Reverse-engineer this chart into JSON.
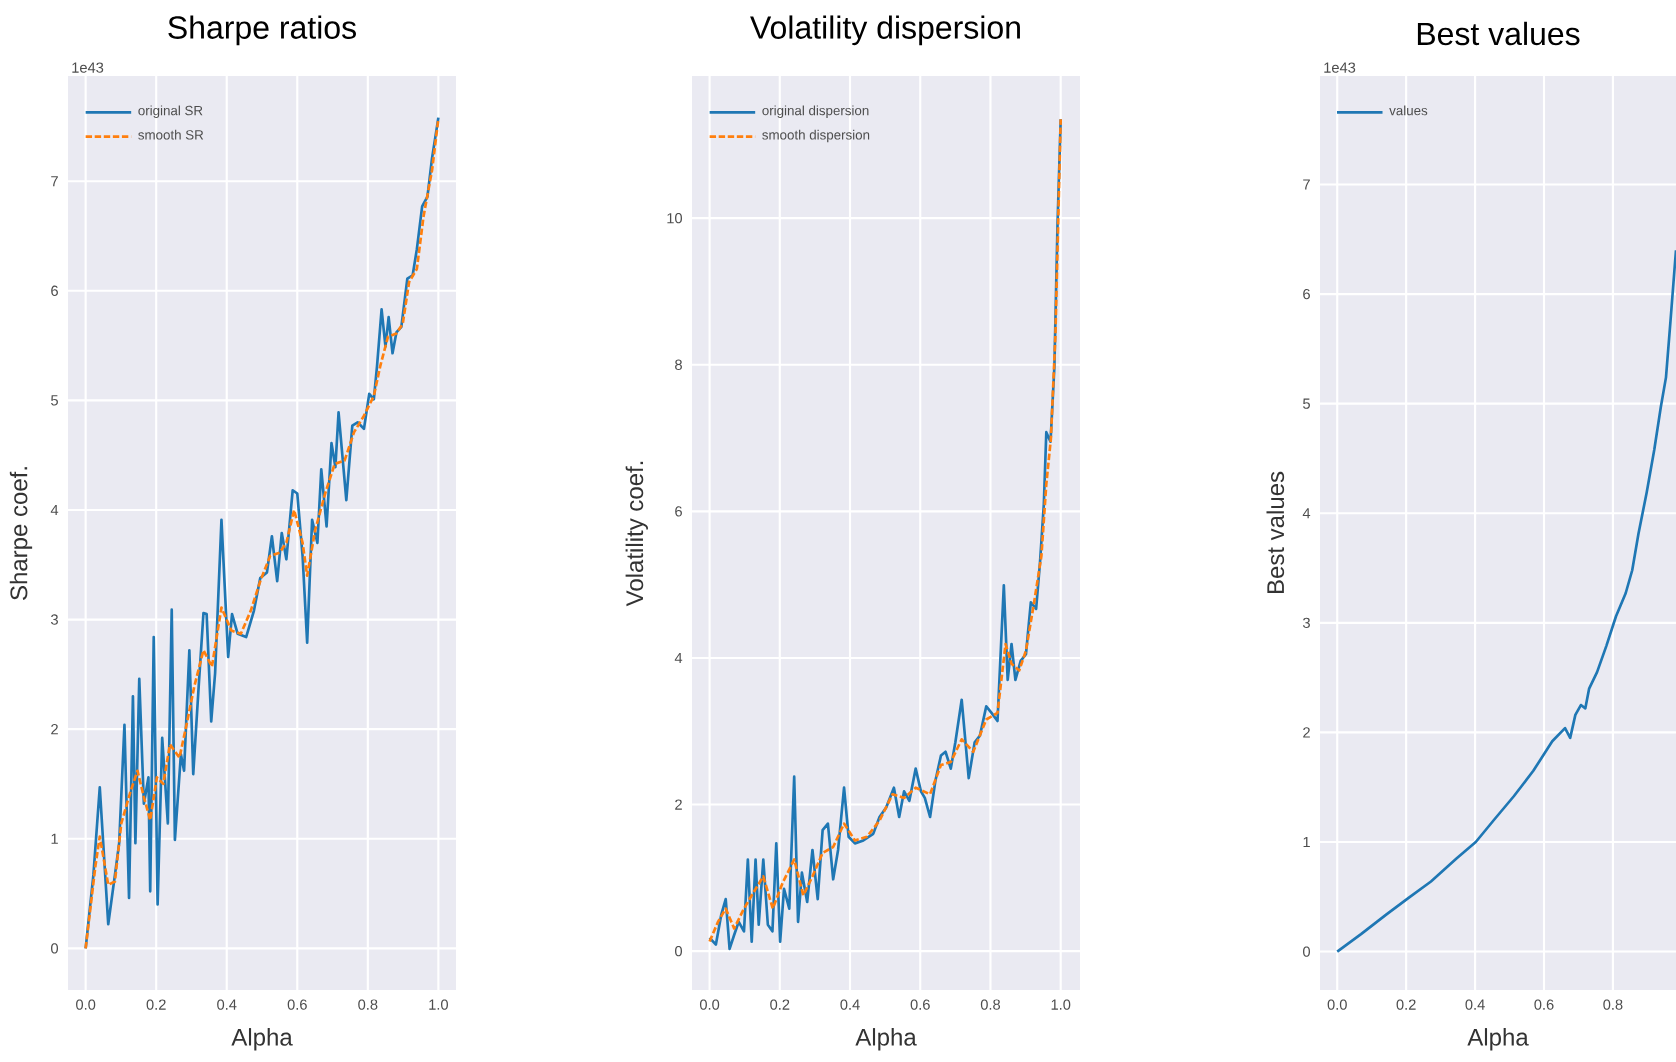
{
  "chart_data": [
    {
      "type": "line",
      "title": "Sharpe ratios",
      "xlabel": "Alpha",
      "ylabel": "Sharpe coef.",
      "annotations": [
        "1e43"
      ],
      "xlim": [
        -0.05,
        1.05
      ],
      "ylim": [
        -0.38,
        7.96
      ],
      "xticks": [
        {
          "value": 0,
          "label": "0.0"
        },
        {
          "value": 0.2,
          "label": "0.2"
        },
        {
          "value": 0.4,
          "label": "0.4"
        },
        {
          "value": 0.6,
          "label": "0.6"
        },
        {
          "value": 0.8,
          "label": "0.8"
        },
        {
          "value": 1,
          "label": "1.0"
        }
      ],
      "yticks": [
        0,
        1,
        2,
        3,
        4,
        5,
        6,
        7
      ],
      "grid": true,
      "legend": "top left",
      "series": [
        {
          "name": "original SR",
          "color": "#1f77b4",
          "line_style": "solid",
          "x": [
            0,
            0.022,
            0.04,
            0.064,
            0.083,
            0.095,
            0.11,
            0.123,
            0.134,
            0.141,
            0.152,
            0.165,
            0.178,
            0.183,
            0.193,
            0.204,
            0.217,
            0.233,
            0.244,
            0.253,
            0.27,
            0.279,
            0.294,
            0.305,
            0.321,
            0.334,
            0.343,
            0.356,
            0.367,
            0.385,
            0.404,
            0.415,
            0.431,
            0.455,
            0.477,
            0.495,
            0.514,
            0.528,
            0.543,
            0.556,
            0.569,
            0.587,
            0.6,
            0.615,
            0.628,
            0.642,
            0.657,
            0.668,
            0.683,
            0.697,
            0.708,
            0.717,
            0.739,
            0.756,
            0.771,
            0.789,
            0.804,
            0.817,
            0.826,
            0.839,
            0.85,
            0.859,
            0.87,
            0.881,
            0.895,
            0.912,
            0.927,
            0.939,
            0.954,
            0.969,
            0.982,
            1.0
          ],
          "values": [
            0,
            0.67,
            1.47,
            0.22,
            0.67,
            0.96,
            2.04,
            0.46,
            2.3,
            0.96,
            2.46,
            1.32,
            1.56,
            0.52,
            2.84,
            0.4,
            1.92,
            1.14,
            3.09,
            0.99,
            1.77,
            1.62,
            2.72,
            1.59,
            2.42,
            3.06,
            3.05,
            2.07,
            2.51,
            3.91,
            2.66,
            3.05,
            2.87,
            2.84,
            3.08,
            3.38,
            3.43,
            3.76,
            3.35,
            3.79,
            3.55,
            4.18,
            4.15,
            3.58,
            2.79,
            3.91,
            3.7,
            4.37,
            3.85,
            4.61,
            4.39,
            4.89,
            4.09,
            4.77,
            4.8,
            4.74,
            5.06,
            5.01,
            5.31,
            5.83,
            5.49,
            5.76,
            5.43,
            5.62,
            5.67,
            6.11,
            6.14,
            6.38,
            6.77,
            6.86,
            7.21,
            7.58
          ]
        },
        {
          "name": "smooth SR",
          "color": "#ff7f0e",
          "line_style": "dashed",
          "x": [
            0,
            0.028,
            0.04,
            0.064,
            0.083,
            0.101,
            0.128,
            0.147,
            0.165,
            0.183,
            0.202,
            0.22,
            0.239,
            0.266,
            0.284,
            0.308,
            0.334,
            0.358,
            0.385,
            0.413,
            0.44,
            0.468,
            0.495,
            0.523,
            0.55,
            0.569,
            0.591,
            0.615,
            0.628,
            0.651,
            0.679,
            0.706,
            0.734,
            0.761,
            0.789,
            0.817,
            0.835,
            0.857,
            0.881,
            0.899,
            0.917,
            0.939,
            0.958,
            0.982,
            1.0
          ],
          "values": [
            0,
            0.76,
            1.02,
            0.58,
            0.61,
            1.14,
            1.44,
            1.62,
            1.38,
            1.17,
            1.56,
            1.5,
            1.86,
            1.74,
            2.01,
            2.39,
            2.72,
            2.57,
            3.11,
            2.9,
            2.87,
            3.08,
            3.35,
            3.58,
            3.61,
            3.7,
            4.0,
            3.7,
            3.4,
            3.82,
            4.15,
            4.42,
            4.45,
            4.71,
            4.86,
            5.04,
            5.31,
            5.58,
            5.61,
            5.7,
            6.08,
            6.2,
            6.68,
            7.1,
            7.57
          ]
        }
      ]
    },
    {
      "type": "line",
      "title": "Volatility dispersion",
      "xlabel": "Alpha",
      "ylabel": "Volatility coef.",
      "xlim": [
        -0.05,
        1.055
      ],
      "ylim": [
        -0.53,
        11.94
      ],
      "xticks": [
        {
          "value": 0,
          "label": "0.0"
        },
        {
          "value": 0.2,
          "label": "0.2"
        },
        {
          "value": 0.4,
          "label": "0.4"
        },
        {
          "value": 0.6,
          "label": "0.6"
        },
        {
          "value": 0.8,
          "label": "0.8"
        },
        {
          "value": 1,
          "label": "1.0"
        }
      ],
      "yticks": [
        0,
        2,
        4,
        6,
        8,
        10
      ],
      "grid": true,
      "legend": "top left",
      "series": [
        {
          "name": "original dispersion",
          "color": "#1f77b4",
          "line_style": "solid",
          "x": [
            0,
            0.018,
            0.033,
            0.046,
            0.057,
            0.07,
            0.083,
            0.098,
            0.109,
            0.12,
            0.131,
            0.14,
            0.153,
            0.166,
            0.179,
            0.19,
            0.201,
            0.212,
            0.227,
            0.241,
            0.252,
            0.263,
            0.278,
            0.293,
            0.308,
            0.322,
            0.337,
            0.352,
            0.366,
            0.383,
            0.396,
            0.414,
            0.438,
            0.466,
            0.484,
            0.503,
            0.525,
            0.54,
            0.554,
            0.569,
            0.587,
            0.602,
            0.613,
            0.628,
            0.643,
            0.659,
            0.672,
            0.687,
            0.7,
            0.718,
            0.738,
            0.755,
            0.77,
            0.788,
            0.803,
            0.82,
            0.838,
            0.849,
            0.86,
            0.871,
            0.886,
            0.901,
            0.915,
            0.93,
            0.941,
            0.952,
            0.959,
            0.971,
            0.982,
            0.991,
            1.0
          ],
          "values": [
            0.18,
            0.09,
            0.49,
            0.71,
            0.03,
            0.22,
            0.4,
            0.27,
            1.25,
            0.13,
            1.25,
            0.36,
            1.25,
            0.36,
            0.27,
            1.47,
            0.13,
            0.85,
            0.58,
            2.38,
            0.4,
            1.07,
            0.67,
            1.38,
            0.71,
            1.65,
            1.74,
            0.98,
            1.38,
            2.23,
            1.56,
            1.47,
            1.51,
            1.6,
            1.83,
            1.96,
            2.23,
            1.83,
            2.18,
            2.05,
            2.49,
            2.18,
            2.09,
            1.83,
            2.32,
            2.67,
            2.72,
            2.49,
            2.85,
            3.43,
            2.36,
            2.85,
            2.94,
            3.34,
            3.25,
            3.14,
            4.99,
            3.7,
            4.19,
            3.7,
            3.96,
            4.05,
            4.76,
            4.67,
            5.3,
            6.1,
            7.08,
            6.95,
            7.97,
            9.93,
            11.35
          ]
        },
        {
          "name": "smooth dispersion",
          "color": "#ff7f0e",
          "line_style": "dashed",
          "x": [
            0,
            0.024,
            0.046,
            0.07,
            0.098,
            0.125,
            0.153,
            0.18,
            0.208,
            0.241,
            0.267,
            0.293,
            0.322,
            0.352,
            0.383,
            0.414,
            0.448,
            0.484,
            0.521,
            0.554,
            0.587,
            0.628,
            0.659,
            0.687,
            0.718,
            0.751,
            0.788,
            0.82,
            0.843,
            0.86,
            0.882,
            0.901,
            0.923,
            0.945,
            0.959,
            0.972,
            0.985,
            1.0
          ],
          "values": [
            0.13,
            0.4,
            0.58,
            0.31,
            0.58,
            0.8,
            1.02,
            0.58,
            0.93,
            1.25,
            0.76,
            1.02,
            1.34,
            1.42,
            1.74,
            1.51,
            1.56,
            1.78,
            2.14,
            2.09,
            2.23,
            2.14,
            2.54,
            2.58,
            2.89,
            2.72,
            3.16,
            3.25,
            4.19,
            3.92,
            3.83,
            4.1,
            4.72,
            5.39,
            6.37,
            6.99,
            8.41,
            11.35
          ]
        }
      ]
    },
    {
      "type": "line",
      "title": "Best values",
      "xlabel": "Alpha",
      "ylabel": "Best values",
      "annotations": [
        "1e43"
      ],
      "xlim": [
        -0.05,
        0.983
      ],
      "ylim": [
        -0.35,
        7.99
      ],
      "xticks": [
        {
          "value": 0,
          "label": "0.0"
        },
        {
          "value": 0.2,
          "label": "0.2"
        },
        {
          "value": 0.4,
          "label": "0.4"
        },
        {
          "value": 0.6,
          "label": "0.6"
        },
        {
          "value": 0.8,
          "label": "0.8"
        }
      ],
      "yticks": [
        0,
        1,
        2,
        3,
        4,
        5,
        6,
        7
      ],
      "grid": true,
      "legend": "top left",
      "series": [
        {
          "name": "values",
          "color": "#1f77b4",
          "line_style": "solid",
          "x": [
            0,
            0.069,
            0.143,
            0.207,
            0.272,
            0.346,
            0.402,
            0.457,
            0.513,
            0.569,
            0.624,
            0.661,
            0.676,
            0.691,
            0.707,
            0.72,
            0.731,
            0.754,
            0.781,
            0.809,
            0.837,
            0.856,
            0.874,
            0.898,
            0.92,
            0.939,
            0.954,
            0.967,
            0.983
          ],
          "values": [
            0,
            0.16,
            0.34,
            0.49,
            0.64,
            0.85,
            1.0,
            1.21,
            1.42,
            1.65,
            1.92,
            2.04,
            1.95,
            2.16,
            2.25,
            2.22,
            2.4,
            2.55,
            2.79,
            3.06,
            3.27,
            3.48,
            3.81,
            4.19,
            4.58,
            4.97,
            5.24,
            5.75,
            6.4
          ]
        }
      ]
    }
  ]
}
